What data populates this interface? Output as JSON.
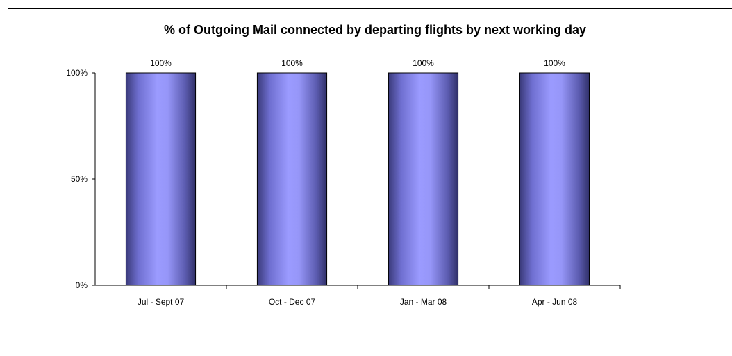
{
  "chart_data": {
    "type": "bar",
    "title": "% of Outgoing Mail connected by departing flights by next working day",
    "categories": [
      "Jul - Sept 07",
      "Oct - Dec 07",
      "Jan - Mar 08",
      "Apr - Jun 08"
    ],
    "values": [
      100,
      100,
      100,
      100
    ],
    "data_labels": [
      "100%",
      "100%",
      "100%",
      "100%"
    ],
    "xlabel": "",
    "ylabel": "",
    "ylim": [
      0,
      100
    ],
    "y_ticks": [
      0,
      50,
      100
    ],
    "y_tick_labels": [
      "0%",
      "50%",
      "100%"
    ],
    "grid": false,
    "legend": "none",
    "colors": {
      "bar_center": "#9b9bff",
      "bar_edge": "#3a3a7a",
      "axis": "#000000"
    }
  }
}
